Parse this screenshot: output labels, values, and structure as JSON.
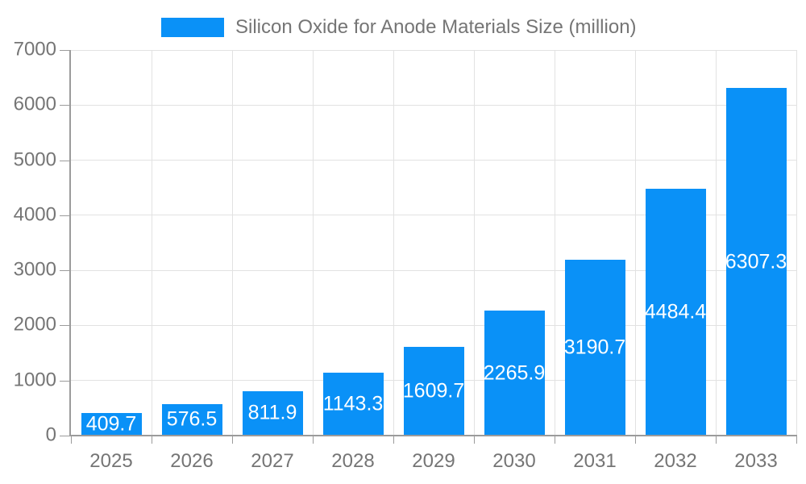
{
  "legend": {
    "label": "Silicon Oxide for Anode Materials Size (million)"
  },
  "chart_data": {
    "type": "bar",
    "title": "Silicon Oxide for Anode Materials Size (million)",
    "series_name": "Silicon Oxide for Anode Materials Size (million)",
    "categories": [
      "2025",
      "2026",
      "2027",
      "2028",
      "2029",
      "2030",
      "2031",
      "2032",
      "2033"
    ],
    "values": [
      409.7,
      576.5,
      811.9,
      1143.3,
      1609.7,
      2265.9,
      3190.7,
      4484.4,
      6307.3
    ],
    "value_labels": [
      "409.7",
      "576.5",
      "811.9",
      "1143.3",
      "1609.7",
      "2265.9",
      "3190.7",
      "4484.4",
      "6307.3"
    ],
    "xlabel": "",
    "ylabel": "",
    "ylim": [
      0,
      7000
    ],
    "ytick_step": 1000,
    "ytick_labels": [
      "0",
      "1000",
      "2000",
      "3000",
      "4000",
      "5000",
      "6000",
      "7000"
    ],
    "grid": true,
    "legend_position": "top",
    "value_label_position": "inside-center"
  },
  "colors": {
    "bar": "#0a91f7",
    "grid": "#e2e2e2",
    "axis": "#9b9b9b",
    "text": "#757575",
    "value_label": "#ffffff",
    "background": "#ffffff"
  }
}
